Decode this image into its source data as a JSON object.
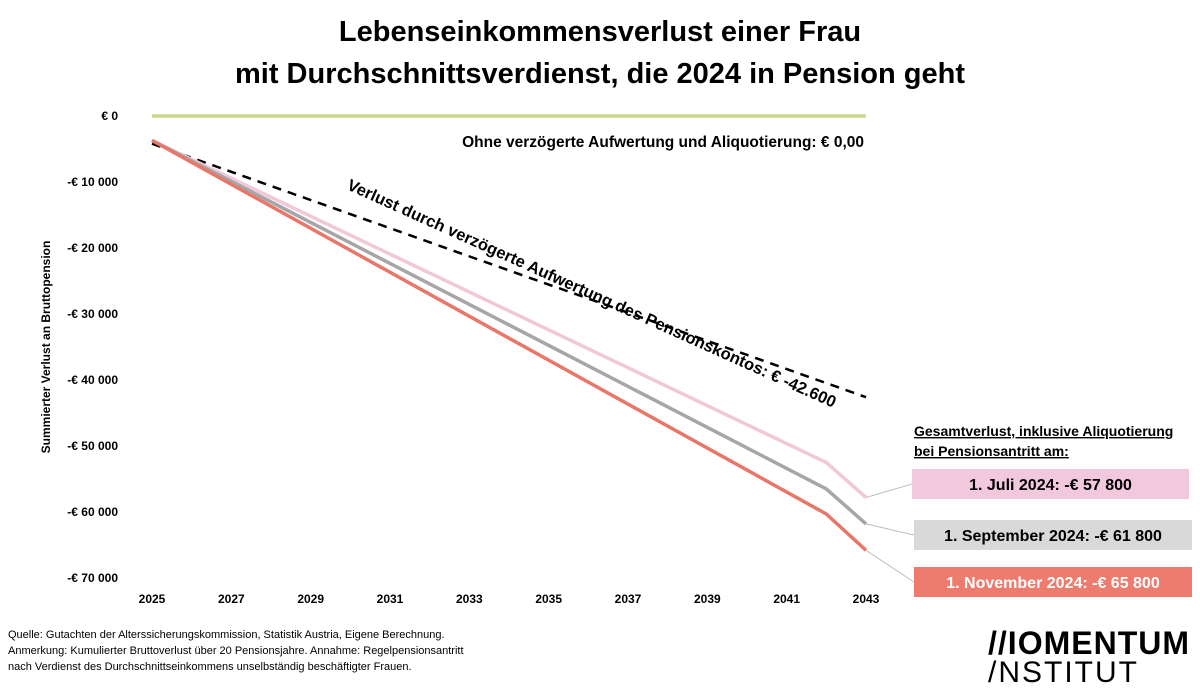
{
  "title_line1": "Lebenseinkommensverlust einer Frau",
  "title_line2": "mit Durchschnittsverdienst, die 2024 in Pension geht",
  "footnotes": [
    "Quelle: Gutachten der Alterssicherungskommission, Statistik Austria, Eigene Berechnung.",
    "Anmerkung: Kumulierter Bruttoverlust über 20 Pensionsjahre. Annahme: Regelpensionsantritt",
    "nach Verdienst des Durchschnittseinkommens unselbständig beschäftigter Frauen."
  ],
  "logo": {
    "line1": "//IOMENTUM",
    "line2": "/NSTITUT"
  },
  "chart_data": {
    "type": "line",
    "ylabel": "Summierter Verlust an Bruttopension",
    "xlim": [
      2025,
      2043
    ],
    "ylim": [
      -70000,
      0
    ],
    "x_ticks": [
      "2025",
      "2027",
      "2029",
      "2031",
      "2033",
      "2035",
      "2037",
      "2039",
      "2041",
      "2043"
    ],
    "y_ticks": [
      "€ 0",
      "-€ 10 000",
      "-€ 20 000",
      "-€ 30 000",
      "-€ 40 000",
      "-€ 50 000",
      "-€ 60 000",
      "-€ 70 000"
    ],
    "y_tick_values": [
      0,
      -10000,
      -20000,
      -30000,
      -40000,
      -50000,
      -60000,
      -70000
    ],
    "series": [
      {
        "name": "Ohne verzögerte Aufwertung und Aliquotierung",
        "color": "#c8d98a",
        "style": "solid",
        "x": [
          2025,
          2043
        ],
        "y": [
          0,
          0
        ]
      },
      {
        "name": "Verlust durch verzögerte Aufwertung des Pensionskontos",
        "color": "#000000",
        "style": "dashed",
        "x": [
          2025,
          2043
        ],
        "y": [
          -4200,
          -42600
        ]
      },
      {
        "name": "1. Juli 2024",
        "color": "#f0c8d8",
        "style": "solid",
        "x": [
          2025,
          2042,
          2043
        ],
        "y": [
          -3700,
          -52500,
          -57800
        ]
      },
      {
        "name": "1. September 2024",
        "color": "#a6a6a6",
        "style": "solid",
        "x": [
          2025,
          2042,
          2043
        ],
        "y": [
          -3700,
          -56500,
          -61800
        ]
      },
      {
        "name": "1. November 2024",
        "color": "#e8776a",
        "style": "solid",
        "x": [
          2025,
          2042,
          2043
        ],
        "y": [
          -3700,
          -60300,
          -65800
        ]
      }
    ],
    "annotations": {
      "zero_line": "Ohne verzögerte Aufwertung und Aliquotierung: € 0,00",
      "dashed_line": "Verlust durch verzögerte Aufwertung des Pensionskontos: € -42.600",
      "box_header_1": "Gesamtverlust, inklusive Aliquotierung",
      "box_header_2": "bei Pensionsantritt am:"
    },
    "boxes": [
      {
        "text": "1. Juli 2024: -€ 57 800",
        "bg": "#f2c9dc",
        "endY": -57800
      },
      {
        "text": "1. September 2024: -€ 61 800",
        "bg": "#d9d9d9",
        "endY": -61800
      },
      {
        "text": "1. November 2024: -€ 65 800",
        "bg": "#ed7b6e",
        "endY": -65800,
        "textColor": "#ffffff"
      }
    ]
  }
}
